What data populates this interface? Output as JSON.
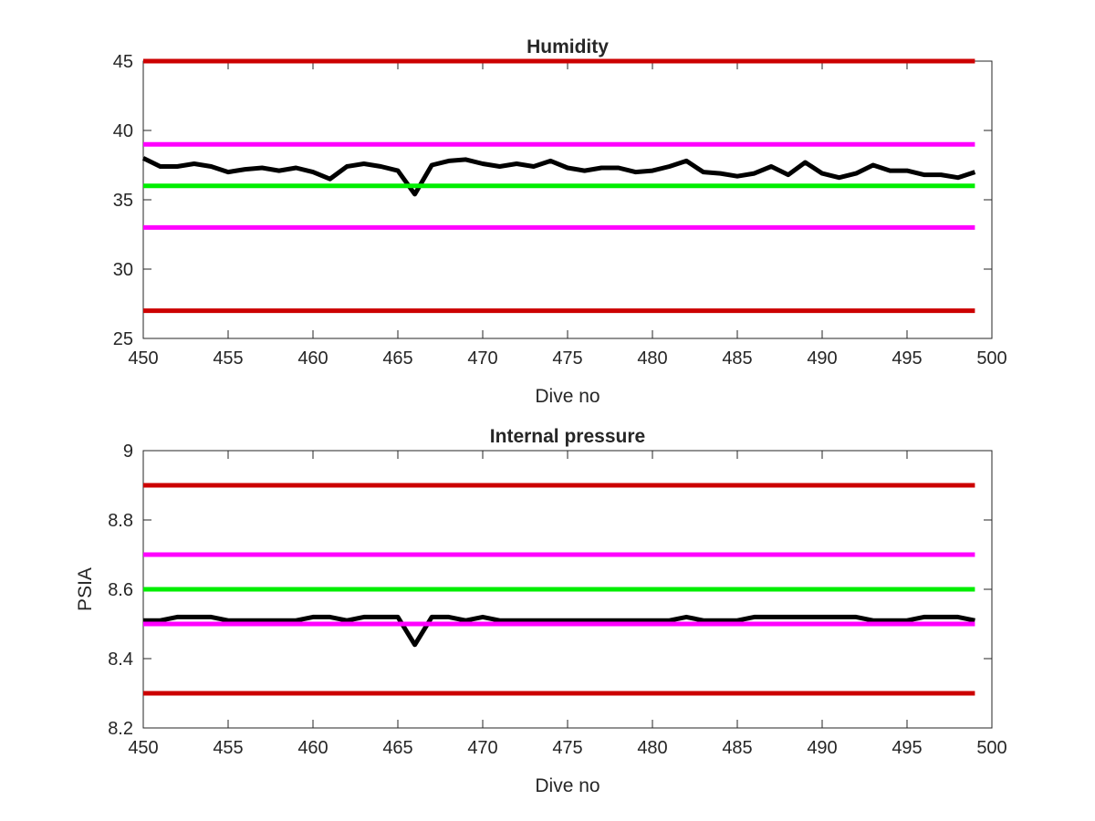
{
  "chart_data": [
    {
      "type": "line",
      "title": "Humidity",
      "xlabel": "Dive no",
      "ylabel": "",
      "xlim": [
        450,
        500
      ],
      "ylim": [
        25,
        45
      ],
      "xticks": [
        "450",
        "455",
        "460",
        "465",
        "470",
        "475",
        "480",
        "485",
        "490",
        "495",
        "500"
      ],
      "yticks": [
        "25",
        "30",
        "35",
        "40",
        "45"
      ],
      "grid": false,
      "legend": "none",
      "x": [
        450,
        451,
        452,
        453,
        454,
        455,
        456,
        457,
        458,
        459,
        460,
        461,
        462,
        463,
        464,
        465,
        466,
        467,
        468,
        469,
        470,
        471,
        472,
        473,
        474,
        475,
        476,
        477,
        478,
        479,
        480,
        481,
        482,
        483,
        484,
        485,
        486,
        487,
        488,
        489,
        490,
        491,
        492,
        493,
        494,
        495,
        496,
        497,
        498,
        499
      ],
      "series": [
        {
          "color": "#000000",
          "values": [
            38.0,
            37.4,
            37.4,
            37.6,
            37.4,
            37.0,
            37.2,
            37.3,
            37.1,
            37.3,
            37.0,
            36.5,
            37.4,
            37.6,
            37.4,
            37.1,
            35.4,
            37.5,
            37.8,
            37.9,
            37.6,
            37.4,
            37.6,
            37.4,
            37.8,
            37.3,
            37.1,
            37.3,
            37.3,
            37.0,
            37.1,
            37.4,
            37.8,
            37.0,
            36.9,
            36.7,
            36.9,
            37.4,
            36.8,
            37.7,
            36.9,
            36.6,
            36.9,
            37.5,
            37.1,
            37.1,
            36.8,
            36.8,
            36.6,
            37.0
          ]
        },
        {
          "color": "#cc0000",
          "values": [
            45,
            45
          ],
          "x": [
            450,
            499
          ]
        },
        {
          "color": "#ff00ff",
          "values": [
            39,
            39
          ],
          "x": [
            450,
            499
          ]
        },
        {
          "color": "#00ee00",
          "values": [
            36,
            36
          ],
          "x": [
            450,
            499
          ]
        },
        {
          "color": "#ff00ff",
          "values": [
            33,
            33
          ],
          "x": [
            450,
            499
          ]
        },
        {
          "color": "#cc0000",
          "values": [
            27,
            27
          ],
          "x": [
            450,
            499
          ]
        }
      ]
    },
    {
      "type": "line",
      "title": "Internal pressure",
      "xlabel": "Dive no",
      "ylabel": "PSIA",
      "xlim": [
        450,
        500
      ],
      "ylim": [
        8.2,
        9.0
      ],
      "xticks": [
        "450",
        "455",
        "460",
        "465",
        "470",
        "475",
        "480",
        "485",
        "490",
        "495",
        "500"
      ],
      "yticks": [
        "8.2",
        "8.4",
        "8.6",
        "8.8",
        "9"
      ],
      "grid": false,
      "legend": "none",
      "x": [
        450,
        451,
        452,
        453,
        454,
        455,
        456,
        457,
        458,
        459,
        460,
        461,
        462,
        463,
        464,
        465,
        466,
        467,
        468,
        469,
        470,
        471,
        472,
        473,
        474,
        475,
        476,
        477,
        478,
        479,
        480,
        481,
        482,
        483,
        484,
        485,
        486,
        487,
        488,
        489,
        490,
        491,
        492,
        493,
        494,
        495,
        496,
        497,
        498,
        499
      ],
      "series": [
        {
          "color": "#000000",
          "values": [
            8.51,
            8.51,
            8.52,
            8.52,
            8.52,
            8.51,
            8.51,
            8.51,
            8.51,
            8.51,
            8.52,
            8.52,
            8.51,
            8.52,
            8.52,
            8.52,
            8.44,
            8.52,
            8.52,
            8.51,
            8.52,
            8.51,
            8.51,
            8.51,
            8.51,
            8.51,
            8.51,
            8.51,
            8.51,
            8.51,
            8.51,
            8.51,
            8.52,
            8.51,
            8.51,
            8.51,
            8.52,
            8.52,
            8.52,
            8.52,
            8.52,
            8.52,
            8.52,
            8.51,
            8.51,
            8.51,
            8.52,
            8.52,
            8.52,
            8.51
          ]
        },
        {
          "color": "#cc0000",
          "values": [
            8.9,
            8.9
          ],
          "x": [
            450,
            499
          ]
        },
        {
          "color": "#ff00ff",
          "values": [
            8.7,
            8.7
          ],
          "x": [
            450,
            499
          ]
        },
        {
          "color": "#00ee00",
          "values": [
            8.6,
            8.6
          ],
          "x": [
            450,
            499
          ]
        },
        {
          "color": "#ff00ff",
          "values": [
            8.5,
            8.5
          ],
          "x": [
            450,
            499
          ]
        },
        {
          "color": "#cc0000",
          "values": [
            8.3,
            8.3
          ],
          "x": [
            450,
            499
          ]
        }
      ]
    }
  ]
}
